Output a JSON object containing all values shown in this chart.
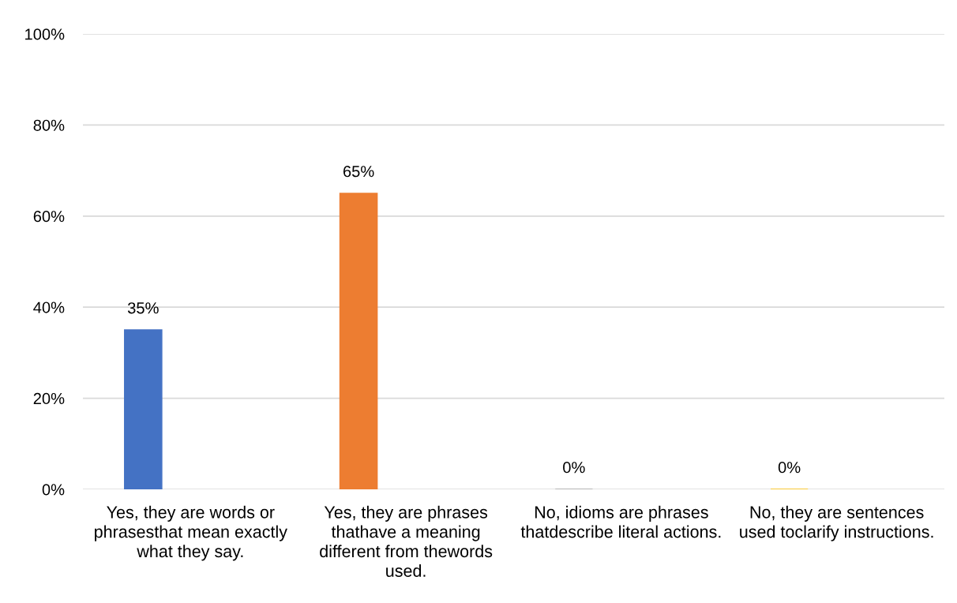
{
  "chart_data": {
    "type": "bar",
    "categories": [
      "Yes, they are words or\nphrasesthat mean exactly\nwhat they say.",
      "Yes, they are phrases\nthathave a meaning\ndifferent from thewords\nused.",
      "No, idioms are phrases\nthatdescribe literal actions.",
      "No, they are sentences\nused toclarify instructions."
    ],
    "values": [
      35,
      65,
      0,
      0
    ],
    "colors": [
      "#4472c4",
      "#ed7d31",
      "#a5a5a5",
      "#ffc000"
    ],
    "value_labels": [
      "35%",
      "65%",
      "0%",
      "0%"
    ],
    "ylim": [
      0,
      100
    ],
    "yticks": [
      {
        "value": 0,
        "label": "0%"
      },
      {
        "value": 20,
        "label": "20%"
      },
      {
        "value": 40,
        "label": "40%"
      },
      {
        "value": 60,
        "label": "60%"
      },
      {
        "value": 80,
        "label": "80%"
      },
      {
        "value": 100,
        "label": "100%"
      }
    ],
    "grid": "y"
  }
}
